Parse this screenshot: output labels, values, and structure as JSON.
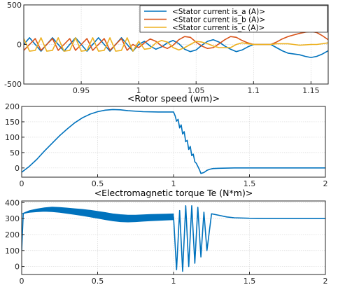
{
  "chart_data": [
    {
      "type": "line",
      "title": "",
      "xlim": [
        0.9,
        1.165
      ],
      "ylim": [
        -500,
        500
      ],
      "xticks": [
        0.95,
        1,
        1.05,
        1.1,
        1.15
      ],
      "xtick_labels": [
        "0.95",
        "1",
        "1.05",
        "1.1",
        "1.15"
      ],
      "yticks": [
        -500,
        0,
        500
      ],
      "ytick_labels": [
        "-500",
        "0",
        "500"
      ],
      "grid": true,
      "legend": "top-right",
      "series": [
        {
          "name": "<Stator current is_a (A)>",
          "color": "#0072BD",
          "x": [
            0.9,
            0.905,
            0.91,
            0.915,
            0.92,
            0.925,
            0.93,
            0.935,
            0.94,
            0.945,
            0.95,
            0.955,
            0.96,
            0.965,
            0.97,
            0.975,
            0.98,
            0.985,
            0.99,
            0.995,
            1.0,
            1.005,
            1.01,
            1.015,
            1.02,
            1.025,
            1.03,
            1.035,
            1.04,
            1.045,
            1.05,
            1.055,
            1.06,
            1.065,
            1.07,
            1.075,
            1.08,
            1.085,
            1.09,
            1.095,
            1.1,
            1.105,
            1.11,
            1.115,
            1.12,
            1.125,
            1.13,
            1.135,
            1.14,
            1.145,
            1.15,
            1.155,
            1.16,
            1.165
          ],
          "y": [
            0,
            85,
            0,
            -85,
            0,
            85,
            0,
            -85,
            0,
            85,
            0,
            -85,
            0,
            85,
            0,
            -85,
            0,
            85,
            0,
            -85,
            0,
            40,
            -20,
            -60,
            -30,
            20,
            50,
            10,
            -60,
            -90,
            -70,
            -10,
            40,
            60,
            30,
            -20,
            -60,
            -90,
            -70,
            -30,
            0,
            0,
            0,
            0,
            -40,
            -80,
            -110,
            -120,
            -130,
            -150,
            -165,
            -150,
            -120,
            -80
          ]
        },
        {
          "name": "<Stator current is_b (A)>",
          "color": "#D95319",
          "x": [
            0.9,
            0.905,
            0.91,
            0.915,
            0.92,
            0.925,
            0.93,
            0.935,
            0.94,
            0.945,
            0.95,
            0.955,
            0.96,
            0.965,
            0.97,
            0.975,
            0.98,
            0.985,
            0.99,
            0.995,
            1.0,
            1.005,
            1.01,
            1.015,
            1.02,
            1.025,
            1.03,
            1.035,
            1.04,
            1.045,
            1.05,
            1.055,
            1.06,
            1.065,
            1.07,
            1.075,
            1.08,
            1.085,
            1.09,
            1.095,
            1.1,
            1.105,
            1.11,
            1.115,
            1.12,
            1.125,
            1.13,
            1.135,
            1.14,
            1.145,
            1.15,
            1.155,
            1.16,
            1.165
          ],
          "y": [
            -74,
            0,
            74,
            -74,
            0,
            74,
            -74,
            0,
            74,
            -74,
            0,
            74,
            -74,
            0,
            74,
            -74,
            0,
            74,
            -74,
            0,
            -40,
            20,
            70,
            40,
            -20,
            -50,
            -10,
            60,
            100,
            90,
            30,
            -20,
            -50,
            -40,
            10,
            60,
            100,
            90,
            50,
            20,
            0,
            0,
            0,
            0,
            30,
            70,
            100,
            120,
            140,
            155,
            165,
            150,
            110,
            60
          ]
        },
        {
          "name": "<Stator current is_c (A)>",
          "color": "#EDB120",
          "x": [
            0.9,
            0.905,
            0.91,
            0.915,
            0.92,
            0.925,
            0.93,
            0.935,
            0.94,
            0.945,
            0.95,
            0.955,
            0.96,
            0.965,
            0.97,
            0.975,
            0.98,
            0.985,
            0.99,
            0.995,
            1.0,
            1.005,
            1.01,
            1.015,
            1.02,
            1.025,
            1.03,
            1.035,
            1.04,
            1.045,
            1.05,
            1.055,
            1.06,
            1.065,
            1.07,
            1.075,
            1.08,
            1.085,
            1.09,
            1.095,
            1.1,
            1.105,
            1.11,
            1.115,
            1.12,
            1.125,
            1.13,
            1.135,
            1.14,
            1.145,
            1.15,
            1.155,
            1.16,
            1.165
          ],
          "y": [
            74,
            -85,
            -74,
            85,
            -85,
            -74,
            85,
            -85,
            -74,
            85,
            -85,
            -74,
            85,
            -85,
            -74,
            85,
            -85,
            -74,
            85,
            -85,
            40,
            -60,
            -50,
            20,
            50,
            30,
            -40,
            -70,
            -40,
            0,
            40,
            30,
            10,
            -20,
            -40,
            -40,
            -40,
            0,
            20,
            10,
            0,
            0,
            0,
            0,
            10,
            10,
            10,
            0,
            -10,
            -5,
            0,
            0,
            10,
            20
          ]
        }
      ]
    },
    {
      "type": "line",
      "title": "<Rotor speed (wm)>",
      "xlim": [
        0,
        2
      ],
      "ylim": [
        -30,
        200
      ],
      "xticks": [
        0,
        0.5,
        1,
        1.5,
        2
      ],
      "xtick_labels": [
        "0",
        "0.5",
        "1",
        "1.5",
        "2"
      ],
      "yticks": [
        0,
        50,
        100,
        150,
        200
      ],
      "ytick_labels": [
        "0",
        "50",
        "100",
        "150",
        "200"
      ],
      "grid": true,
      "series": [
        {
          "color": "#0072BD",
          "x": [
            0,
            0.05,
            0.1,
            0.15,
            0.2,
            0.25,
            0.3,
            0.35,
            0.4,
            0.45,
            0.5,
            0.55,
            0.6,
            0.65,
            0.7,
            0.8,
            0.9,
            1.0,
            1.01,
            1.02,
            1.03,
            1.04,
            1.05,
            1.06,
            1.07,
            1.08,
            1.09,
            1.1,
            1.11,
            1.12,
            1.13,
            1.14,
            1.15,
            1.16,
            1.17,
            1.18,
            1.2,
            1.22,
            1.24,
            1.26,
            1.3,
            1.4,
            1.6,
            1.8,
            2.0
          ],
          "y": [
            -14,
            5,
            28,
            55,
            80,
            105,
            127,
            147,
            163,
            175,
            183,
            188,
            190,
            189,
            186,
            183,
            182,
            182,
            170,
            152,
            158,
            130,
            140,
            110,
            118,
            85,
            90,
            60,
            70,
            40,
            45,
            20,
            15,
            5,
            -5,
            -18,
            -15,
            -8,
            -4,
            -2,
            -1,
            0,
            0,
            0,
            0
          ]
        }
      ]
    },
    {
      "type": "line",
      "title": "<Electromagnetic torque Te (N*m)>",
      "xlim": [
        0,
        2
      ],
      "ylim": [
        -50,
        410
      ],
      "xticks": [
        0,
        0.5,
        1,
        1.5,
        2
      ],
      "xtick_labels": [
        "0",
        "0.5",
        "1",
        "1.5",
        "2"
      ],
      "yticks": [
        0,
        100,
        200,
        300,
        400
      ],
      "ytick_labels": [
        "0",
        "100",
        "200",
        "300",
        "400"
      ],
      "grid": true,
      "series": [
        {
          "color": "#0072BD",
          "x": [
            0,
            0.01,
            0.02,
            0.05,
            0.1,
            0.15,
            0.2,
            0.25,
            0.3,
            0.35,
            0.4,
            0.5,
            0.6,
            0.7,
            0.8,
            0.9,
            1.0,
            1.02,
            1.04,
            1.06,
            1.08,
            1.1,
            1.12,
            1.14,
            1.16,
            1.18,
            1.2,
            1.22,
            1.25,
            1.3,
            1.35,
            1.4,
            1.5,
            1.6,
            1.8,
            2.0
          ],
          "y": [
            100,
            330,
            335,
            345,
            355,
            358,
            357,
            352,
            348,
            345,
            340,
            325,
            310,
            300,
            303,
            305,
            310,
            -20,
            350,
            -30,
            380,
            0,
            380,
            20,
            370,
            60,
            340,
            100,
            330,
            320,
            310,
            305,
            302,
            301,
            300,
            300
          ],
          "band": {
            "x": [
              0,
              0.05,
              0.1,
              0.15,
              0.2,
              0.25,
              0.3,
              0.35,
              0.4,
              0.45,
              0.5,
              0.55,
              0.6,
              0.65,
              0.7,
              0.75,
              0.8,
              0.85,
              0.9,
              0.95,
              1.0
            ],
            "upper": [
              330,
              350,
              360,
              368,
              372,
              370,
              366,
              362,
              358,
              352,
              345,
              338,
              330,
              325,
              322,
              322,
              324,
              326,
              327,
              328,
              330
            ],
            "lower": [
              330,
              338,
              342,
              345,
              343,
              338,
              332,
              325,
              318,
              310,
              302,
              293,
              285,
              280,
              278,
              280,
              283,
              286,
              288,
              290,
              292
            ]
          }
        }
      ]
    }
  ]
}
